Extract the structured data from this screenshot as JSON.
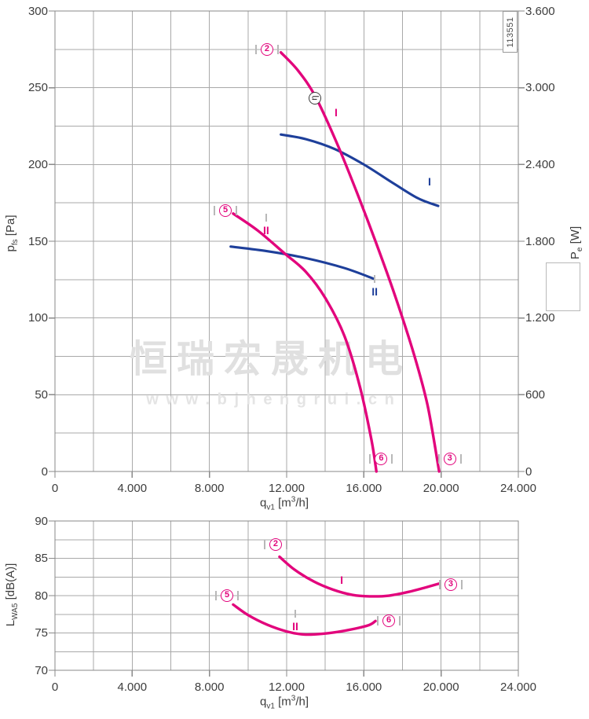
{
  "part_number": "113551",
  "watermark": {
    "line1": "恒瑞宏晟机电",
    "line2": "w w w . b j h e n g r u i . c n"
  },
  "colors": {
    "magenta": "#e2047c",
    "blue": "#1e3f9a",
    "grid": "#a9a9a9",
    "axis": "#8a8a8a",
    "text": "#3d3d3d",
    "watermark": "#e0e0e0",
    "marker_gray": "#b8b8b8",
    "eta_ring": "#3c3c3c"
  },
  "axis_titles": {
    "flow": {
      "base": "q",
      "sub": "v1",
      "unit_pre": " [m",
      "sup": "3",
      "unit_post": "/h]"
    },
    "pressure": {
      "base": "p",
      "sub": "fs",
      "unit": " [Pa]"
    },
    "power": {
      "base": "P",
      "sub": "e",
      "unit": " [W]"
    },
    "noise": {
      "base": "L",
      "sub": "WA5",
      "unit": " [dB(A)]"
    }
  },
  "chart_data": [
    {
      "type": "line",
      "name": "fan-performance-curves",
      "xlabel": "qv1 [m3/h]",
      "xlim": [
        0,
        24000
      ],
      "x_major": 4000,
      "x_minor": 2000,
      "x_tick_labels": [
        "0",
        "4.000",
        "8.000",
        "12.000",
        "16.000",
        "20.000",
        "24.000"
      ],
      "left_axis": {
        "label": "pfs [Pa]",
        "lim": [
          0,
          300
        ],
        "major": 50,
        "minor": 25,
        "tick_labels": [
          "300",
          "250",
          "200",
          "150",
          "100",
          "50",
          "0"
        ]
      },
      "right_axis": {
        "label": "Pe [W]",
        "lim": [
          0,
          3600
        ],
        "major": 600,
        "minor": 300,
        "tick_labels": [
          "3.600",
          "3.000",
          "2.400",
          "1.800",
          "1.200",
          "600",
          "0"
        ]
      },
      "series": [
        {
          "name": "power-curve-I",
          "color": "blue",
          "axis": "right",
          "points": [
            [
              11700,
              2634
            ],
            [
              13000,
              2598
            ],
            [
              14500,
              2520
            ],
            [
              16000,
              2400
            ],
            [
              17500,
              2256
            ],
            [
              18800,
              2136
            ],
            [
              19850,
              2076
            ]
          ]
        },
        {
          "name": "power-curve-II",
          "color": "blue",
          "axis": "right",
          "points": [
            [
              9100,
              1758
            ],
            [
              11000,
              1722
            ],
            [
              13000,
              1668
            ],
            [
              15000,
              1590
            ],
            [
              16530,
              1506
            ]
          ]
        },
        {
          "name": "pressure-curve-I",
          "color": "magenta",
          "axis": "left",
          "points": [
            [
              11700,
              273
            ],
            [
              12600,
              261
            ],
            [
              13500,
              244
            ],
            [
              14600,
              214
            ],
            [
              15600,
              183
            ],
            [
              16600,
              150
            ],
            [
              17600,
              115
            ],
            [
              18600,
              76
            ],
            [
              19300,
              43
            ],
            [
              19900,
              0
            ]
          ]
        },
        {
          "name": "pressure-curve-II",
          "color": "magenta",
          "axis": "left",
          "points": [
            [
              9230,
              168
            ],
            [
              10500,
              157
            ],
            [
              11900,
              142
            ],
            [
              13000,
              130
            ],
            [
              14000,
              113
            ],
            [
              15000,
              88
            ],
            [
              15800,
              55
            ],
            [
              16400,
              20
            ],
            [
              16650,
              0
            ]
          ]
        }
      ],
      "markers": [
        {
          "type": "circle-number",
          "label": "2",
          "color": "magenta",
          "x": 10980,
          "y": 275
        },
        {
          "type": "circle-number",
          "label": "5",
          "color": "magenta",
          "x": 8830,
          "y": 170
        },
        {
          "type": "circle-number",
          "label": "6",
          "color": "magenta",
          "x": 16900,
          "y": 8
        },
        {
          "type": "circle-number",
          "label": "3",
          "color": "magenta",
          "x": 20450,
          "y": 8
        },
        {
          "type": "eta",
          "label": "η",
          "x": 13465,
          "y": 243
        },
        {
          "type": "curve-label",
          "label": "I",
          "color": "magenta",
          "x": 14560,
          "y": 234,
          "tick": "none"
        },
        {
          "type": "curve-label",
          "label": "II",
          "color": "magenta",
          "x": 10940,
          "y": 157,
          "tick": "above"
        },
        {
          "type": "curve-label",
          "label": "I",
          "color": "blue",
          "x": 19400,
          "y": 189,
          "tick": "none"
        },
        {
          "type": "curve-label",
          "label": "II",
          "color": "blue",
          "x": 16560,
          "y": 117,
          "tick": "above"
        }
      ]
    },
    {
      "type": "line",
      "name": "noise-level-curves",
      "xlabel": "qv1 [m3/h]",
      "xlim": [
        0,
        24000
      ],
      "x_major": 4000,
      "x_minor": 2000,
      "x_tick_labels": [
        "0",
        "4.000",
        "8.000",
        "12.000",
        "16.000",
        "20.000",
        "24.000"
      ],
      "left_axis": {
        "label": "LWA5 [dB(A)]",
        "lim": [
          70,
          90
        ],
        "major": 5,
        "minor": 2.5,
        "tick_labels": [
          "90",
          "85",
          "80",
          "75",
          "70"
        ]
      },
      "series": [
        {
          "name": "noise-curve-I",
          "color": "magenta",
          "axis": "left",
          "points": [
            [
              11630,
              85.2
            ],
            [
              12400,
              83.5
            ],
            [
              13400,
              81.9
            ],
            [
              14400,
              80.8
            ],
            [
              15400,
              80.1
            ],
            [
              16300,
              79.9
            ],
            [
              17300,
              80.0
            ],
            [
              18300,
              80.5
            ],
            [
              19200,
              81.1
            ],
            [
              19890,
              81.6
            ]
          ]
        },
        {
          "name": "noise-curve-II",
          "color": "magenta",
          "axis": "left",
          "points": [
            [
              9230,
              78.8
            ],
            [
              10000,
              77.4
            ],
            [
              11000,
              76.1
            ],
            [
              12000,
              75.2
            ],
            [
              12900,
              74.8
            ],
            [
              13900,
              74.9
            ],
            [
              15000,
              75.3
            ],
            [
              16200,
              76.0
            ],
            [
              16600,
              76.6
            ]
          ]
        }
      ],
      "markers": [
        {
          "type": "circle-number",
          "label": "2",
          "color": "magenta",
          "x": 11430,
          "y": 86.8
        },
        {
          "type": "circle-number",
          "label": "5",
          "color": "magenta",
          "x": 8910,
          "y": 80.0
        },
        {
          "type": "circle-number",
          "label": "3",
          "color": "magenta",
          "x": 20500,
          "y": 81.5
        },
        {
          "type": "circle-number",
          "label": "6",
          "color": "magenta",
          "x": 17290,
          "y": 76.6
        },
        {
          "type": "curve-label",
          "label": "I",
          "color": "magenta",
          "x": 14850,
          "y": 82.1,
          "tick": "none"
        },
        {
          "type": "curve-label",
          "label": "II",
          "color": "magenta",
          "x": 12450,
          "y": 75.9,
          "tick": "above"
        }
      ]
    }
  ]
}
